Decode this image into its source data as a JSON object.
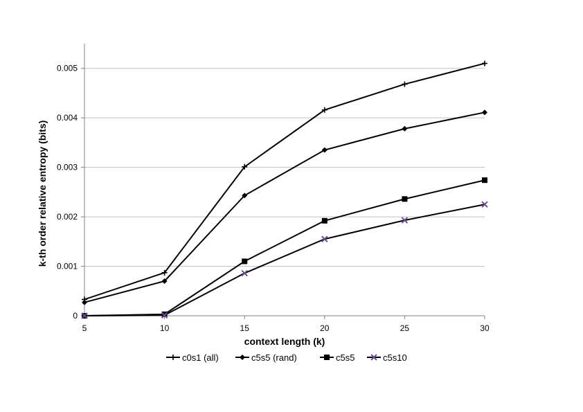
{
  "chart_data": {
    "type": "line",
    "title": "",
    "xlabel": "context length (k)",
    "ylabel": "k-th order relative entropy (bits)",
    "x": [
      5,
      10,
      15,
      20,
      25,
      30
    ],
    "xlim": [
      5,
      30
    ],
    "ylim": [
      0,
      0.0055
    ],
    "yticks": [
      "0",
      "0.001",
      "0.002",
      "0.003",
      "0.004",
      "0.005"
    ],
    "ytick_values": [
      0,
      0.001,
      0.002,
      0.003,
      0.004,
      0.005
    ],
    "xticks": [
      "5",
      "10",
      "15",
      "20",
      "25",
      "30"
    ],
    "grid": "horizontal",
    "legend_position": "bottom",
    "series": [
      {
        "name": "c0s1 (all)",
        "marker": "plus",
        "color": "#000000",
        "values": [
          0.00033,
          0.00087,
          0.00301,
          0.00416,
          0.00468,
          0.0051
        ]
      },
      {
        "name": "c5s5 (rand)",
        "marker": "diamond",
        "color": "#000000",
        "values": [
          0.00027,
          0.0007,
          0.00243,
          0.00335,
          0.00378,
          0.00411
        ]
      },
      {
        "name": "c5s5",
        "marker": "square",
        "color": "#000000",
        "values": [
          0.0,
          3e-05,
          0.0011,
          0.00192,
          0.00236,
          0.00274
        ]
      },
      {
        "name": "c5s10",
        "marker": "x",
        "color": "#000000",
        "marker_color": "#6a4c93",
        "values": [
          0.0,
          1e-05,
          0.00086,
          0.00155,
          0.00193,
          0.00225
        ]
      }
    ]
  }
}
